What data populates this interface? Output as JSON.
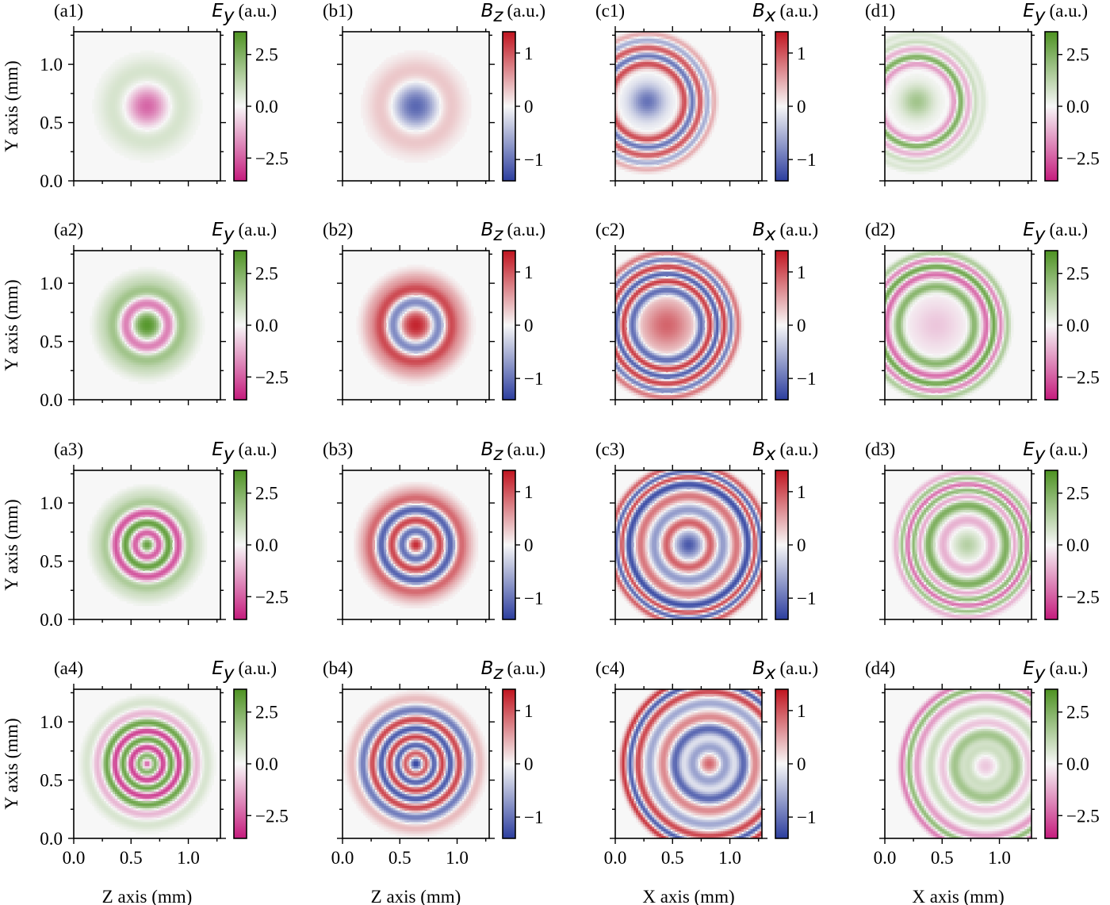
{
  "figure": {
    "x_axis_labels": [
      "Z axis (mm)",
      "Z axis (mm)",
      "X axis (mm)",
      "X axis (mm)"
    ],
    "y_axis_label": "Y axis (mm)",
    "x_tick_labels": [
      "0.0",
      "0.5",
      "1.0"
    ],
    "y_tick_labels": [
      "0.0",
      "0.5",
      "1.0"
    ],
    "unit_label": "(a.u.)"
  },
  "colormaps": {
    "PiYG": [
      "#c51b7d",
      "#f7f7f7",
      "#4d9221"
    ],
    "RdBu_r": [
      "#2c3e9e",
      "#f7f7f7",
      "#c0141f"
    ]
  },
  "chart_data": [
    {
      "panel": "(a1)",
      "type": "heatmap",
      "field": "E",
      "sub": "y",
      "unit": "(a.u.)",
      "xlabel": "",
      "ylabel": "Y axis (mm)",
      "colormap": "PiYG",
      "clim": [
        -3.6,
        3.6
      ],
      "cbar_ticks": [
        "2.5",
        "0.0",
        "−2.5"
      ],
      "cbar_tick_values": [
        2.5,
        0,
        -2.5
      ],
      "xlim": [
        0,
        1.28
      ],
      "ylim": [
        0,
        1.28
      ],
      "pattern": {
        "shape": "rings",
        "cx": 0.64,
        "cy": 0.64,
        "rings": [
          {
            "r": 0.0,
            "w": 0.13,
            "v": -2.4
          },
          {
            "r": 0.27,
            "w": 0.1,
            "v": 0.9
          }
        ]
      }
    },
    {
      "panel": "(b1)",
      "type": "heatmap",
      "field": "B",
      "sub": "z",
      "unit": "(a.u.)",
      "xlabel": "",
      "ylabel": "",
      "colormap": "RdBu_r",
      "clim": [
        -1.4,
        1.4
      ],
      "cbar_ticks": [
        "1",
        "0",
        "−1"
      ],
      "cbar_tick_values": [
        1,
        0,
        -1
      ],
      "xlim": [
        0,
        1.28
      ],
      "ylim": [
        0,
        1.28
      ],
      "pattern": {
        "shape": "rings",
        "cx": 0.64,
        "cy": 0.64,
        "rings": [
          {
            "r": 0.0,
            "w": 0.16,
            "v": -1.1
          },
          {
            "r": 0.27,
            "w": 0.1,
            "v": 0.5
          }
        ]
      }
    },
    {
      "panel": "(c1)",
      "type": "heatmap",
      "field": "B",
      "sub": "x",
      "unit": "(a.u.)",
      "xlabel": "",
      "ylabel": "",
      "colormap": "RdBu_r",
      "clim": [
        -1.4,
        1.4
      ],
      "cbar_ticks": [
        "1",
        "0",
        "−1"
      ],
      "cbar_tick_values": [
        1,
        0,
        -1
      ],
      "xlim": [
        0,
        1.28
      ],
      "ylim": [
        0,
        1.28
      ],
      "pattern": {
        "shape": "rings",
        "cx": 0.28,
        "cy": 0.68,
        "rings": [
          {
            "r": 0.0,
            "w": 0.1,
            "v": -1.0
          },
          {
            "r": 0.33,
            "w": 0.03,
            "v": 1.2
          },
          {
            "r": 0.39,
            "w": 0.03,
            "v": -1.2
          },
          {
            "r": 0.46,
            "w": 0.03,
            "v": 1.1
          },
          {
            "r": 0.52,
            "w": 0.025,
            "v": -0.7
          },
          {
            "r": 0.58,
            "w": 0.02,
            "v": 0.5
          }
        ]
      }
    },
    {
      "panel": "(d1)",
      "type": "heatmap",
      "field": "E",
      "sub": "y",
      "unit": "(a.u.)",
      "xlabel": "",
      "ylabel": "",
      "colormap": "PiYG",
      "clim": [
        -3.6,
        3.6
      ],
      "cbar_ticks": [
        "2.5",
        "0.0",
        "−2.5"
      ],
      "cbar_tick_values": [
        2.5,
        0,
        -2.5
      ],
      "xlim": [
        0,
        1.28
      ],
      "ylim": [
        0,
        1.28
      ],
      "pattern": {
        "shape": "rings",
        "cx": 0.28,
        "cy": 0.68,
        "rings": [
          {
            "r": 0.0,
            "w": 0.1,
            "v": 1.8
          },
          {
            "r": 0.33,
            "w": 0.025,
            "v": -1.8
          },
          {
            "r": 0.38,
            "w": 0.025,
            "v": 2.8
          },
          {
            "r": 0.45,
            "w": 0.025,
            "v": -1.2
          },
          {
            "r": 0.51,
            "w": 0.02,
            "v": 1.0
          },
          {
            "r": 0.58,
            "w": 0.02,
            "v": 0.6
          }
        ]
      }
    },
    {
      "panel": "(a2)",
      "type": "heatmap",
      "field": "E",
      "sub": "y",
      "unit": "(a.u.)",
      "xlabel": "",
      "ylabel": "Y axis (mm)",
      "colormap": "PiYG",
      "clim": [
        -3.6,
        3.6
      ],
      "cbar_ticks": [
        "2.5",
        "0.0",
        "−2.5"
      ],
      "cbar_tick_values": [
        2.5,
        0,
        -2.5
      ],
      "xlim": [
        0,
        1.28
      ],
      "ylim": [
        0,
        1.28
      ],
      "pattern": {
        "shape": "rings",
        "cx": 0.64,
        "cy": 0.64,
        "rings": [
          {
            "r": 0.0,
            "w": 0.12,
            "v": 3.4
          },
          {
            "r": 0.18,
            "w": 0.05,
            "v": -3.2
          },
          {
            "r": 0.29,
            "w": 0.05,
            "v": 1.8
          },
          {
            "r": 0.4,
            "w": 0.05,
            "v": 0.7
          }
        ]
      }
    },
    {
      "panel": "(b2)",
      "type": "heatmap",
      "field": "B",
      "sub": "z",
      "unit": "(a.u.)",
      "xlabel": "",
      "ylabel": "",
      "colormap": "RdBu_r",
      "clim": [
        -1.4,
        1.4
      ],
      "cbar_ticks": [
        "1",
        "0",
        "−1"
      ],
      "cbar_tick_values": [
        1,
        0,
        -1
      ],
      "xlim": [
        0,
        1.28
      ],
      "ylim": [
        0,
        1.28
      ],
      "pattern": {
        "shape": "rings",
        "cx": 0.64,
        "cy": 0.64,
        "rings": [
          {
            "r": 0.0,
            "w": 0.12,
            "v": 1.3
          },
          {
            "r": 0.2,
            "w": 0.05,
            "v": -1.3
          },
          {
            "r": 0.3,
            "w": 0.05,
            "v": 1.1
          },
          {
            "r": 0.41,
            "w": 0.05,
            "v": 0.4
          }
        ]
      }
    },
    {
      "panel": "(c2)",
      "type": "heatmap",
      "field": "B",
      "sub": "x",
      "unit": "(a.u.)",
      "xlabel": "",
      "ylabel": "",
      "colormap": "RdBu_r",
      "clim": [
        -1.4,
        1.4
      ],
      "cbar_ticks": [
        "1",
        "0",
        "−1"
      ],
      "cbar_tick_values": [
        1,
        0,
        -1
      ],
      "xlim": [
        0,
        1.28
      ],
      "ylim": [
        0,
        1.28
      ],
      "pattern": {
        "shape": "rings",
        "cx": 0.45,
        "cy": 0.64,
        "rings": [
          {
            "r": 0.0,
            "w": 0.16,
            "v": 0.9
          },
          {
            "r": 0.3,
            "w": 0.03,
            "v": -1.2
          },
          {
            "r": 0.38,
            "w": 0.025,
            "v": 1.2
          },
          {
            "r": 0.44,
            "w": 0.025,
            "v": -1.3
          },
          {
            "r": 0.5,
            "w": 0.025,
            "v": 1.2
          },
          {
            "r": 0.56,
            "w": 0.02,
            "v": -1.0
          },
          {
            "r": 0.62,
            "w": 0.02,
            "v": 0.8
          }
        ]
      }
    },
    {
      "panel": "(d2)",
      "type": "heatmap",
      "field": "E",
      "sub": "y",
      "unit": "(a.u.)",
      "xlabel": "",
      "ylabel": "",
      "colormap": "PiYG",
      "clim": [
        -3.6,
        3.6
      ],
      "cbar_ticks": [
        "2.5",
        "0.0",
        "−2.5"
      ],
      "cbar_tick_values": [
        2.5,
        0,
        -2.5
      ],
      "xlim": [
        0,
        1.28
      ],
      "ylim": [
        0,
        1.28
      ],
      "pattern": {
        "shape": "rings",
        "cx": 0.45,
        "cy": 0.64,
        "rings": [
          {
            "r": 0.0,
            "w": 0.15,
            "v": -0.8
          },
          {
            "r": 0.33,
            "w": 0.03,
            "v": 2.4
          },
          {
            "r": 0.44,
            "w": 0.025,
            "v": -2.4
          },
          {
            "r": 0.5,
            "w": 0.025,
            "v": 3.0
          },
          {
            "r": 0.56,
            "w": 0.02,
            "v": -2.0
          },
          {
            "r": 0.62,
            "w": 0.02,
            "v": 1.6
          }
        ]
      }
    },
    {
      "panel": "(a3)",
      "type": "heatmap",
      "field": "E",
      "sub": "y",
      "unit": "(a.u.)",
      "xlabel": "",
      "ylabel": "Y axis (mm)",
      "colormap": "PiYG",
      "clim": [
        -3.6,
        3.6
      ],
      "cbar_ticks": [
        "2.5",
        "0.0",
        "−2.5"
      ],
      "cbar_tick_values": [
        2.5,
        0,
        -2.5
      ],
      "xlim": [
        0,
        1.28
      ],
      "ylim": [
        0,
        1.28
      ],
      "pattern": {
        "shape": "rings",
        "cx": 0.64,
        "cy": 0.64,
        "rings": [
          {
            "r": 0.0,
            "w": 0.06,
            "v": 3.2
          },
          {
            "r": 0.1,
            "w": 0.035,
            "v": -3.4
          },
          {
            "r": 0.19,
            "w": 0.035,
            "v": 3.4
          },
          {
            "r": 0.27,
            "w": 0.035,
            "v": -3.0
          },
          {
            "r": 0.36,
            "w": 0.04,
            "v": 1.6
          },
          {
            "r": 0.45,
            "w": 0.04,
            "v": 0.6
          }
        ]
      }
    },
    {
      "panel": "(b3)",
      "type": "heatmap",
      "field": "B",
      "sub": "z",
      "unit": "(a.u.)",
      "xlabel": "",
      "ylabel": "",
      "colormap": "RdBu_r",
      "clim": [
        -1.4,
        1.4
      ],
      "cbar_ticks": [
        "1",
        "0",
        "−1"
      ],
      "cbar_tick_values": [
        1,
        0,
        -1
      ],
      "xlim": [
        0,
        1.28
      ],
      "ylim": [
        0,
        1.28
      ],
      "pattern": {
        "shape": "rings",
        "cx": 0.64,
        "cy": 0.64,
        "rings": [
          {
            "r": 0.0,
            "w": 0.06,
            "v": 1.3
          },
          {
            "r": 0.12,
            "w": 0.04,
            "v": -1.3
          },
          {
            "r": 0.21,
            "w": 0.04,
            "v": 1.3
          },
          {
            "r": 0.3,
            "w": 0.04,
            "v": -1.3
          },
          {
            "r": 0.39,
            "w": 0.04,
            "v": 0.9
          },
          {
            "r": 0.47,
            "w": 0.04,
            "v": 0.3
          }
        ]
      }
    },
    {
      "panel": "(c3)",
      "type": "heatmap",
      "field": "B",
      "sub": "x",
      "unit": "(a.u.)",
      "xlabel": "",
      "ylabel": "",
      "colormap": "RdBu_r",
      "clim": [
        -1.4,
        1.4
      ],
      "cbar_ticks": [
        "1",
        "0",
        "−1"
      ],
      "cbar_tick_values": [
        1,
        0,
        -1
      ],
      "xlim": [
        0,
        1.28
      ],
      "ylim": [
        0,
        1.28
      ],
      "pattern": {
        "shape": "rings",
        "cx": 0.64,
        "cy": 0.64,
        "rings": [
          {
            "r": 0.0,
            "w": 0.08,
            "v": -1.2
          },
          {
            "r": 0.19,
            "w": 0.035,
            "v": 1.0
          },
          {
            "r": 0.3,
            "w": 0.035,
            "v": -0.7
          },
          {
            "r": 0.42,
            "w": 0.035,
            "v": 0.8
          },
          {
            "r": 0.52,
            "w": 0.03,
            "v": -1.3
          },
          {
            "r": 0.58,
            "w": 0.02,
            "v": 1.3
          },
          {
            "r": 0.63,
            "w": 0.02,
            "v": -1.2
          },
          {
            "r": 0.68,
            "w": 0.02,
            "v": 1.0
          }
        ]
      }
    },
    {
      "panel": "(d3)",
      "type": "heatmap",
      "field": "E",
      "sub": "y",
      "unit": "(a.u.)",
      "xlabel": "",
      "ylabel": "",
      "colormap": "PiYG",
      "clim": [
        -3.6,
        3.6
      ],
      "cbar_ticks": [
        "2.5",
        "0.0",
        "−2.5"
      ],
      "cbar_tick_values": [
        2.5,
        0,
        -2.5
      ],
      "xlim": [
        0,
        1.28
      ],
      "ylim": [
        0,
        1.28
      ],
      "pattern": {
        "shape": "rings",
        "cx": 0.72,
        "cy": 0.64,
        "rings": [
          {
            "r": 0.0,
            "w": 0.08,
            "v": 1.4
          },
          {
            "r": 0.21,
            "w": 0.035,
            "v": -1.2
          },
          {
            "r": 0.34,
            "w": 0.035,
            "v": 2.6
          },
          {
            "r": 0.41,
            "w": 0.025,
            "v": -1.6
          },
          {
            "r": 0.47,
            "w": 0.02,
            "v": 2.4
          },
          {
            "r": 0.52,
            "w": 0.02,
            "v": -2.4
          },
          {
            "r": 0.57,
            "w": 0.02,
            "v": 2.0
          },
          {
            "r": 0.62,
            "w": 0.02,
            "v": -1.2
          }
        ]
      }
    },
    {
      "panel": "(a4)",
      "type": "heatmap",
      "field": "E",
      "sub": "y",
      "unit": "(a.u.)",
      "xlabel": "Z axis (mm)",
      "ylabel": "Y axis (mm)",
      "colormap": "PiYG",
      "clim": [
        -3.6,
        3.6
      ],
      "cbar_ticks": [
        "2.5",
        "0.0",
        "−2.5"
      ],
      "cbar_tick_values": [
        2.5,
        0,
        -2.5
      ],
      "xlim": [
        0,
        1.28
      ],
      "ylim": [
        0,
        1.28
      ],
      "pattern": {
        "shape": "rings",
        "cx": 0.64,
        "cy": 0.64,
        "rings": [
          {
            "r": 0.0,
            "w": 0.04,
            "v": -2.8
          },
          {
            "r": 0.07,
            "w": 0.03,
            "v": 3.2
          },
          {
            "r": 0.14,
            "w": 0.03,
            "v": -3.4
          },
          {
            "r": 0.21,
            "w": 0.03,
            "v": 3.4
          },
          {
            "r": 0.28,
            "w": 0.03,
            "v": -3.4
          },
          {
            "r": 0.35,
            "w": 0.03,
            "v": 3.2
          },
          {
            "r": 0.43,
            "w": 0.035,
            "v": -1.2
          },
          {
            "r": 0.52,
            "w": 0.04,
            "v": 0.7
          }
        ]
      }
    },
    {
      "panel": "(b4)",
      "type": "heatmap",
      "field": "B",
      "sub": "z",
      "unit": "(a.u.)",
      "xlabel": "Z axis (mm)",
      "ylabel": "",
      "colormap": "RdBu_r",
      "clim": [
        -1.4,
        1.4
      ],
      "cbar_ticks": [
        "1",
        "0",
        "−1"
      ],
      "cbar_tick_values": [
        1,
        0,
        -1
      ],
      "xlim": [
        0,
        1.28
      ],
      "ylim": [
        0,
        1.28
      ],
      "pattern": {
        "shape": "rings",
        "cx": 0.64,
        "cy": 0.64,
        "rings": [
          {
            "r": 0.0,
            "w": 0.05,
            "v": -1.4
          },
          {
            "r": 0.09,
            "w": 0.03,
            "v": 1.3
          },
          {
            "r": 0.16,
            "w": 0.03,
            "v": -1.3
          },
          {
            "r": 0.23,
            "w": 0.03,
            "v": 1.3
          },
          {
            "r": 0.3,
            "w": 0.03,
            "v": -1.3
          },
          {
            "r": 0.38,
            "w": 0.03,
            "v": 1.2
          },
          {
            "r": 0.46,
            "w": 0.035,
            "v": -1.0
          },
          {
            "r": 0.55,
            "w": 0.04,
            "v": 0.4
          }
        ]
      }
    },
    {
      "panel": "(c4)",
      "type": "heatmap",
      "field": "B",
      "sub": "x",
      "unit": "(a.u.)",
      "xlabel": "X axis (mm)",
      "ylabel": "",
      "colormap": "RdBu_r",
      "clim": [
        -1.4,
        1.4
      ],
      "cbar_ticks": [
        "1",
        "0",
        "−1"
      ],
      "cbar_tick_values": [
        1,
        0,
        -1
      ],
      "xlim": [
        0,
        1.28
      ],
      "ylim": [
        0,
        1.28
      ],
      "pattern": {
        "shape": "rings",
        "cx": 0.82,
        "cy": 0.64,
        "rings": [
          {
            "r": 0.0,
            "w": 0.06,
            "v": 0.9
          },
          {
            "r": 0.14,
            "w": 0.04,
            "v": -0.7
          },
          {
            "r": 0.3,
            "w": 0.035,
            "v": -1.1
          },
          {
            "r": 0.4,
            "w": 0.035,
            "v": 0.7
          },
          {
            "r": 0.52,
            "w": 0.03,
            "v": -0.6
          },
          {
            "r": 0.62,
            "w": 0.025,
            "v": 1.1
          },
          {
            "r": 0.69,
            "w": 0.02,
            "v": -1.2
          },
          {
            "r": 0.75,
            "w": 0.02,
            "v": 1.2
          }
        ]
      }
    },
    {
      "panel": "(d4)",
      "type": "heatmap",
      "field": "E",
      "sub": "y",
      "unit": "(a.u.)",
      "xlabel": "X axis (mm)",
      "ylabel": "",
      "colormap": "PiYG",
      "clim": [
        -3.6,
        3.6
      ],
      "cbar_ticks": [
        "2.5",
        "0.0",
        "−2.5"
      ],
      "cbar_tick_values": [
        2.5,
        0,
        -2.5
      ],
      "xlim": [
        0,
        1.28
      ],
      "ylim": [
        0,
        1.28
      ],
      "pattern": {
        "shape": "rings",
        "cx": 0.88,
        "cy": 0.62,
        "rings": [
          {
            "r": 0.0,
            "w": 0.06,
            "v": -0.8
          },
          {
            "r": 0.15,
            "w": 0.04,
            "v": 0.9
          },
          {
            "r": 0.27,
            "w": 0.04,
            "v": 1.8
          },
          {
            "r": 0.37,
            "w": 0.03,
            "v": -0.9
          },
          {
            "r": 0.48,
            "w": 0.03,
            "v": 1.0
          },
          {
            "r": 0.6,
            "w": 0.025,
            "v": -1.5
          },
          {
            "r": 0.67,
            "w": 0.02,
            "v": 2.2
          },
          {
            "r": 0.73,
            "w": 0.02,
            "v": -2.0
          }
        ]
      }
    }
  ]
}
